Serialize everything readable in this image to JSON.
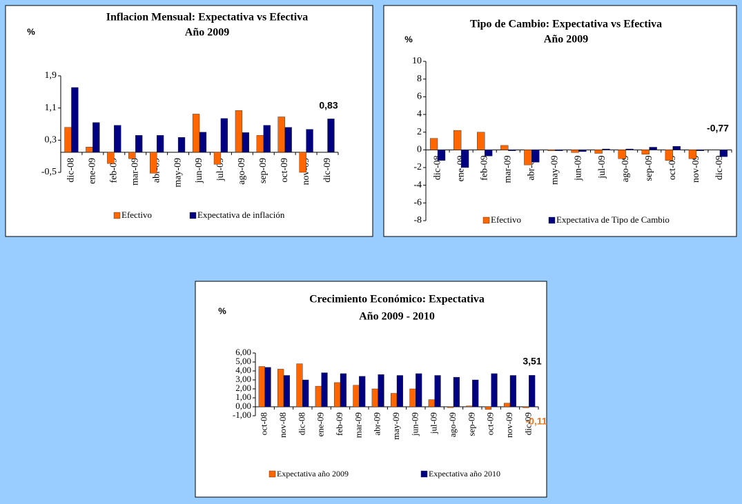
{
  "chart_data": [
    {
      "type": "bar",
      "title": "Inflacion Mensual: Expectativa vs Efectiva",
      "subtitle": "Año 2009",
      "y_label": "%",
      "categories": [
        "dic-08",
        "ene-09",
        "feb-09",
        "mar-09",
        "abr-09",
        "may-09",
        "jun-09",
        "jul-09",
        "ago-09",
        "sep-09",
        "oct-09",
        "nov-09",
        "dic-09"
      ],
      "series": [
        {
          "name": "Efectivo",
          "color": "#ff6600",
          "values": [
            0.62,
            0.13,
            -0.28,
            -0.16,
            -0.52,
            0,
            0.95,
            -0.3,
            1.04,
            0.42,
            0.88,
            -0.5,
            null
          ]
        },
        {
          "name": "Expectativa de inflación",
          "color": "#000080",
          "values": [
            1.61,
            0.74,
            0.67,
            0.42,
            0.42,
            0.37,
            0.5,
            0.84,
            0.49,
            0.67,
            0.62,
            0.57,
            0.83
          ]
        }
      ],
      "ylim": [
        -0.5,
        1.9
      ],
      "yticks": [
        {
          "value": -0.5,
          "label": "-0,5"
        },
        {
          "value": 0.3,
          "label": "0,3"
        },
        {
          "value": 1.1,
          "label": "1,1"
        },
        {
          "value": 1.9,
          "label": "1,9"
        }
      ],
      "annotations": [
        {
          "text": "0,83",
          "color": "#000000"
        }
      ]
    },
    {
      "type": "bar",
      "title": "Tipo de Cambio: Expectativa vs Efectiva",
      "subtitle": "Año 2009",
      "y_label": "%",
      "categories": [
        "dic-08",
        "ene-09",
        "feb-09",
        "mar-09",
        "abr-09",
        "may-09",
        "jun-09",
        "jul-09",
        "ago-09",
        "sep-09",
        "oct-09",
        "nov-09",
        "dic-09"
      ],
      "series": [
        {
          "name": "Efectivo",
          "color": "#ff6600",
          "values": [
            1.3,
            2.2,
            2.0,
            0.5,
            -1.7,
            -0.1,
            -0.3,
            -0.4,
            -1.0,
            -0.5,
            -1.2,
            -1.0,
            null
          ]
        },
        {
          "name": "Expectativa de Tipo de Cambio",
          "color": "#000080",
          "values": [
            -1.2,
            -2.0,
            -0.7,
            -0.1,
            -1.4,
            -0.1,
            -0.2,
            0.1,
            0.1,
            0.3,
            0.4,
            -0.1,
            -0.77
          ]
        }
      ],
      "ylim": [
        -8,
        10
      ],
      "yticks": [
        -8,
        -6,
        -4,
        -2,
        0,
        2,
        4,
        6,
        8,
        10
      ],
      "annotations": [
        {
          "text": "-0,77",
          "color": "#000000"
        }
      ]
    },
    {
      "type": "bar",
      "title": "Crecimiento Económico: Expectativa",
      "subtitle": "Año 2009 - 2010",
      "y_label": "%",
      "categories": [
        "oct-08",
        "nov-08",
        "dic-08",
        "ene-09",
        "feb-09",
        "mar-09",
        "abr-09",
        "may-09",
        "jun-09",
        "jul-09",
        "ago-09",
        "sep-09",
        "oct-09",
        "nov-09",
        "dic-09"
      ],
      "series": [
        {
          "name": "Expectativa año 2009",
          "color": "#ff6600",
          "values": [
            4.5,
            4.2,
            4.8,
            2.3,
            2.7,
            2.4,
            2.0,
            1.5,
            2.0,
            0.8,
            -0.1,
            0.1,
            -0.3,
            0.4,
            -0.11
          ]
        },
        {
          "name": "Expectativa año 2010",
          "color": "#000080",
          "values": [
            4.4,
            3.5,
            3.0,
            3.8,
            3.7,
            3.4,
            3.6,
            3.5,
            3.7,
            3.5,
            3.3,
            3.0,
            3.7,
            3.5,
            3.51
          ]
        }
      ],
      "ylim": [
        -1,
        6
      ],
      "yticks": [
        {
          "value": -1,
          "label": "-1,00"
        },
        {
          "value": 0,
          "label": "0,00"
        },
        {
          "value": 1,
          "label": "1,00"
        },
        {
          "value": 2,
          "label": "2,00"
        },
        {
          "value": 3,
          "label": "3,00"
        },
        {
          "value": 4,
          "label": "4,00"
        },
        {
          "value": 5,
          "label": "5,00"
        },
        {
          "value": 6,
          "label": "6,00"
        }
      ],
      "annotations": [
        {
          "text": "3,51",
          "color": "#000000"
        },
        {
          "text": "-0,11",
          "color": "#e87722"
        }
      ]
    }
  ]
}
